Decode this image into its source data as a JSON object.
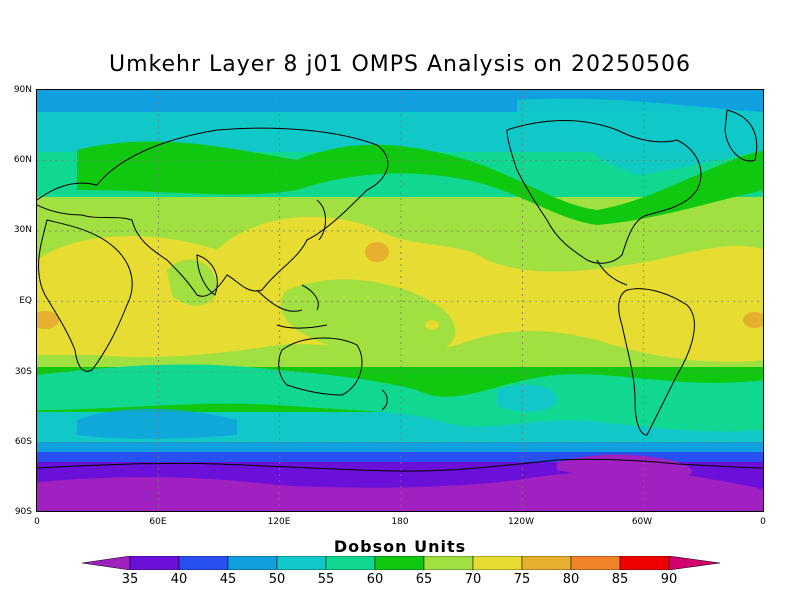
{
  "title": "Umkehr Layer 8 j01 OMPS Analysis on 20250506",
  "map": {
    "projection": "cylindrical equidistant",
    "lon_range": [
      0,
      360
    ],
    "lat_range": [
      -90,
      90
    ],
    "lat_labels": [
      "90N",
      "60N",
      "30N",
      "EQ",
      "30S",
      "60S",
      "90S"
    ],
    "lon_labels": [
      "0",
      "60E",
      "120E",
      "180",
      "120W",
      "60W",
      "0"
    ],
    "gridlines": "dotted",
    "ocean_fill_dominant_value": 70
  },
  "colorbar": {
    "title": "Dobson Units",
    "levels": [
      "35",
      "40",
      "45",
      "50",
      "55",
      "60",
      "65",
      "70",
      "75",
      "80",
      "85",
      "90"
    ],
    "colors": [
      "#a020c0",
      "#6a10d8",
      "#2850f0",
      "#10a0e0",
      "#10c8c8",
      "#10d890",
      "#10c810",
      "#a0e040",
      "#e6dc32",
      "#e6af2d",
      "#f08228",
      "#f00000",
      "#d2006e"
    ]
  }
}
